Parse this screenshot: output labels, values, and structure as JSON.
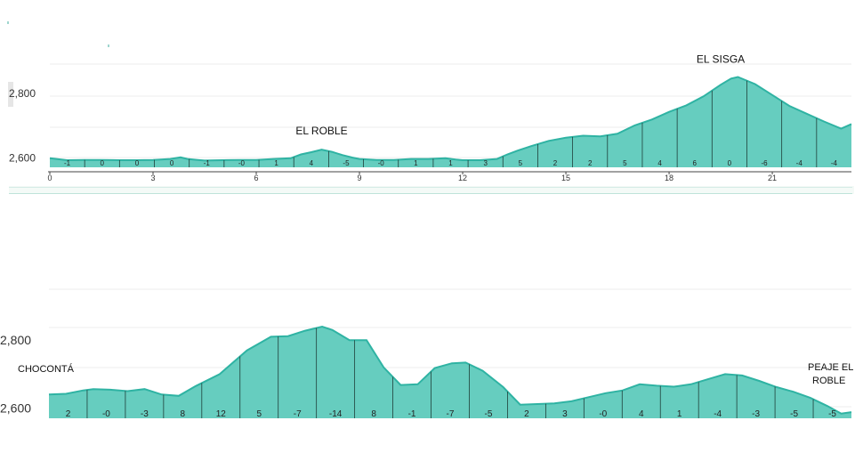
{
  "colors": {
    "fill": "#66cdbf",
    "stroke": "#2fb3a3",
    "divider": "#1f3f3a",
    "grid": "#ececec"
  },
  "chart_data": [
    {
      "type": "area",
      "xlabel": "",
      "ylabel": "",
      "xlim": [
        0,
        23.3
      ],
      "ylim": [
        2570,
        2890
      ],
      "y_ticks": [
        {
          "value": 2600,
          "label": "2,600"
        },
        {
          "value": 2800,
          "label": "2,800"
        }
      ],
      "x_ticks": [
        {
          "value": 0,
          "label": "0"
        },
        {
          "value": 3,
          "label": "3"
        },
        {
          "value": 6,
          "label": "6"
        },
        {
          "value": 9,
          "label": "9"
        },
        {
          "value": 12,
          "label": "12"
        },
        {
          "value": 15,
          "label": "15"
        },
        {
          "value": 18,
          "label": "18"
        },
        {
          "value": 21,
          "label": "21"
        }
      ],
      "annotations": [
        {
          "label": "EL ROBLE",
          "x": 7.9,
          "y": 2625
        },
        {
          "label": "EL SISGA",
          "x": 19.5,
          "y": 2850
        }
      ],
      "segment_grades": [
        "-1",
        "0",
        "0",
        "0",
        "-1",
        "-0",
        "1",
        "4",
        "-5",
        "-0",
        "1",
        "1",
        "3",
        "5",
        "2",
        "2",
        "5",
        "4",
        "6",
        "0",
        "-6",
        "-4",
        "-4"
      ],
      "profile": {
        "x": [
          0,
          0.5,
          1,
          1.5,
          2,
          2.5,
          3,
          3.5,
          3.8,
          4,
          4.3,
          4.5,
          5,
          5.5,
          6,
          6.5,
          7,
          7.3,
          7.6,
          7.9,
          8.2,
          8.5,
          8.8,
          9,
          9.5,
          10,
          10.5,
          11,
          11.5,
          11.8,
          12,
          12.5,
          13,
          13.3,
          13.6,
          14,
          14.5,
          15,
          15.5,
          16,
          16.5,
          17,
          17.5,
          18,
          18.5,
          19,
          19.5,
          19.8,
          20,
          20.5,
          21,
          21.5,
          22,
          22.5,
          23,
          23.3
        ],
        "y": [
          2598,
          2592,
          2593,
          2593,
          2592,
          2592,
          2593,
          2596,
          2601,
          2596,
          2593,
          2591,
          2592,
          2593,
          2593,
          2596,
          2598,
          2610,
          2617,
          2625,
          2618,
          2608,
          2600,
          2596,
          2593,
          2593,
          2596,
          2596,
          2598,
          2594,
          2592,
          2592,
          2596,
          2610,
          2622,
          2636,
          2652,
          2662,
          2668,
          2666,
          2674,
          2700,
          2718,
          2742,
          2762,
          2790,
          2826,
          2845,
          2850,
          2828,
          2794,
          2760,
          2736,
          2712,
          2690,
          2704
        ]
      }
    },
    {
      "type": "area",
      "xlabel": "",
      "ylabel": "",
      "xlim": [
        0,
        23.5
      ],
      "ylim": [
        2570,
        2950
      ],
      "y_ticks": [
        {
          "value": 2600,
          "label": "2,600"
        },
        {
          "value": 2800,
          "label": "2,800"
        }
      ],
      "x_ticks": [],
      "annotations": [
        {
          "label": "CHOCONTÁ",
          "x": 0,
          "y": 2665
        },
        {
          "label": "PEAJE EL",
          "x": 23.5,
          "y": 2600
        },
        {
          "label": "ROBLE",
          "x": 23.5,
          "y": 2600
        }
      ],
      "segment_grades": [
        "2",
        "-0",
        "-3",
        "8",
        "12",
        "5",
        "-7",
        "-14",
        "8",
        "-1",
        "-7",
        "-5",
        "2",
        "3",
        "-0",
        "4",
        "1",
        "-4",
        "-3",
        "-5",
        "-5"
      ],
      "profile": {
        "x": [
          0,
          0.5,
          1,
          1.3,
          1.8,
          2.3,
          2.8,
          3.3,
          3.8,
          4.3,
          5,
          5.8,
          6.5,
          7,
          7.5,
          8,
          8.3,
          8.8,
          9.3,
          9.8,
          10.3,
          10.8,
          11.3,
          11.8,
          12.2,
          12.7,
          13.3,
          13.8,
          14.3,
          14.8,
          15.3,
          15.8,
          16.3,
          16.8,
          17.3,
          17.8,
          18.3,
          18.8,
          19.3,
          19.8,
          20.3,
          20.8,
          21.3,
          21.8,
          22.3,
          22.8,
          23.2,
          23.5
        ],
        "y": [
          2640,
          2642,
          2652,
          2656,
          2654,
          2650,
          2656,
          2640,
          2636,
          2665,
          2700,
          2770,
          2810,
          2812,
          2828,
          2840,
          2830,
          2800,
          2800,
          2720,
          2668,
          2670,
          2718,
          2732,
          2734,
          2710,
          2662,
          2610,
          2612,
          2614,
          2620,
          2632,
          2644,
          2652,
          2670,
          2666,
          2663,
          2670,
          2685,
          2700,
          2696,
          2680,
          2662,
          2648,
          2630,
          2606,
          2584,
          2588
        ]
      }
    }
  ]
}
